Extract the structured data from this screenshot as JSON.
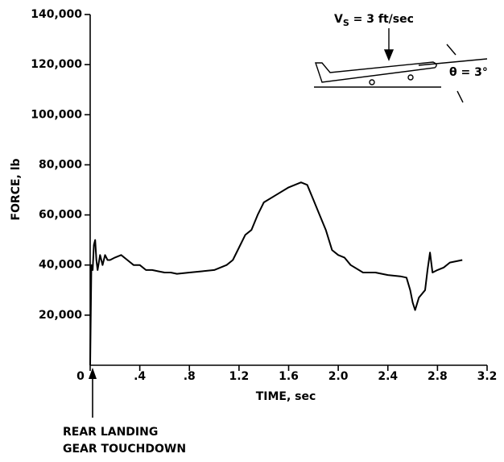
{
  "chart_data": {
    "type": "line",
    "x_label": "TIME, sec",
    "y_label": "FORCE, lb",
    "annotations": {
      "touchdown": [
        "REAR LANDING",
        "GEAR TOUCHDOWN"
      ],
      "sink_speed": {
        "symbol": "V",
        "subscript": "S",
        "rest": " = 3 ft/sec"
      },
      "pitch": "θ = 3°"
    },
    "xlim": [
      0,
      3.2
    ],
    "ylim": [
      0,
      140000
    ],
    "xticks": [
      0,
      {
        "value": 0.4,
        "label": ".4"
      },
      {
        "value": 0.8,
        "label": ".8"
      },
      {
        "value": 1.2,
        "label": "1.2"
      },
      {
        "value": 1.6,
        "label": "1.6"
      },
      {
        "value": 2.0,
        "label": "2.0"
      },
      {
        "value": 2.4,
        "label": "2.4"
      },
      {
        "value": 2.8,
        "label": "2.8"
      },
      {
        "value": 3.2,
        "label": "3.2"
      }
    ],
    "yticks": [
      {
        "value": 20000,
        "label": "20,000"
      },
      {
        "value": 40000,
        "label": "40,000"
      },
      {
        "value": 60000,
        "label": "60,000"
      },
      {
        "value": 80000,
        "label": "80,000"
      },
      {
        "value": 100000,
        "label": "100,000"
      },
      {
        "value": 120000,
        "label": "120,000"
      },
      {
        "value": 140000,
        "label": "140,000"
      }
    ],
    "color": "#000000",
    "x": [
      0,
      0.01,
      0.02,
      0.03,
      0.04,
      0.05,
      0.06,
      0.08,
      0.1,
      0.12,
      0.14,
      0.16,
      0.2,
      0.25,
      0.3,
      0.35,
      0.4,
      0.45,
      0.5,
      0.55,
      0.6,
      0.65,
      0.7,
      0.8,
      0.9,
      1.0,
      1.1,
      1.15,
      1.2,
      1.25,
      1.3,
      1.35,
      1.4,
      1.5,
      1.6,
      1.7,
      1.75,
      1.8,
      1.85,
      1.9,
      1.95,
      2.0,
      2.05,
      2.1,
      2.2,
      2.3,
      2.4,
      2.5,
      2.55,
      2.58,
      2.6,
      2.62,
      2.65,
      2.7,
      2.72,
      2.74,
      2.76,
      2.8,
      2.85,
      2.9,
      3.0
    ],
    "values": [
      0,
      40000,
      38000,
      48000,
      50000,
      42000,
      38000,
      44000,
      40000,
      44000,
      42000,
      42000,
      43000,
      44000,
      42000,
      40000,
      40000,
      38000,
      38000,
      37500,
      37000,
      37000,
      36500,
      37000,
      37500,
      38000,
      40000,
      42000,
      47000,
      52000,
      54000,
      60000,
      65000,
      68000,
      71000,
      73000,
      72000,
      66000,
      60000,
      54000,
      46000,
      44000,
      43000,
      40000,
      37000,
      37000,
      36000,
      35500,
      35000,
      30000,
      25000,
      22000,
      27000,
      30000,
      38000,
      45000,
      37000,
      38000,
      39000,
      41000,
      42000
    ]
  }
}
